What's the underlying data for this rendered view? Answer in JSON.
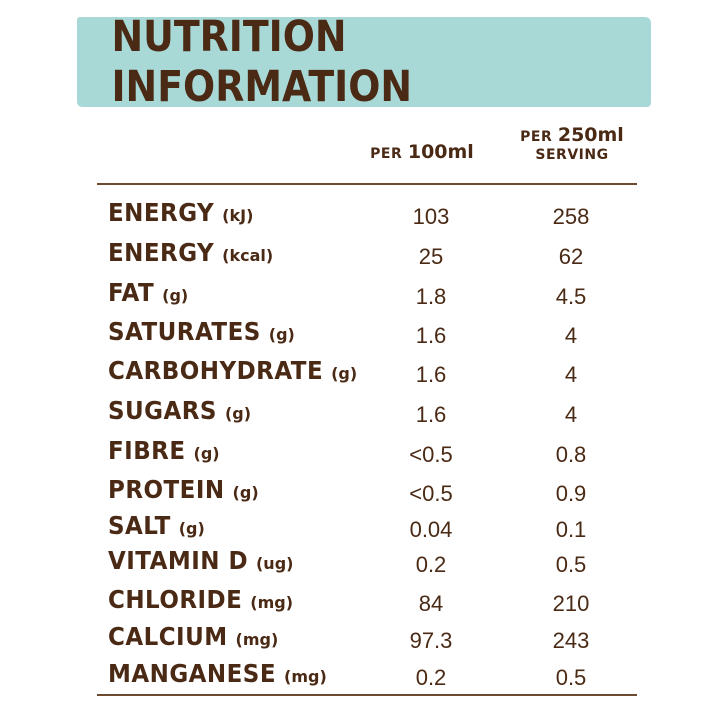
{
  "title": "NUTRITION INFORMATION",
  "columns": {
    "col1": {
      "prefix": "PER",
      "amount": "100ml"
    },
    "col2": {
      "prefix": "PER",
      "amount": "250ml",
      "suffix": "SERVING"
    }
  },
  "rows": [
    {
      "name": "ENERGY",
      "unit": "(kJ)",
      "per100": "103",
      "perServing": "258"
    },
    {
      "name": "ENERGY",
      "unit": "(kcal)",
      "per100": "25",
      "perServing": "62"
    },
    {
      "name": "FAT",
      "unit": "(g)",
      "per100": "1.8",
      "perServing": "4.5"
    },
    {
      "name": "SATURATES",
      "unit": "(g)",
      "per100": "1.6",
      "perServing": "4"
    },
    {
      "name": "CARBOHYDRATE",
      "unit": "(g)",
      "per100": "1.6",
      "perServing": "4"
    },
    {
      "name": "SUGARS",
      "unit": "(g)",
      "per100": "1.6",
      "perServing": "4"
    },
    {
      "name": "FIBRE",
      "unit": "(g)",
      "per100": "<0.5",
      "perServing": "0.8"
    },
    {
      "name": "PROTEIN",
      "unit": "(g)",
      "per100": "<0.5",
      "perServing": "0.9"
    },
    {
      "name": "SALT",
      "unit": "(g)",
      "per100": "0.04",
      "perServing": "0.1"
    },
    {
      "name": "VITAMIN D",
      "unit": "(ug)",
      "per100": "0.2",
      "perServing": "0.5"
    },
    {
      "name": "CHLORIDE",
      "unit": "(mg)",
      "per100": "84",
      "perServing": "210"
    },
    {
      "name": "CALCIUM",
      "unit": "(mg)",
      "per100": "97.3",
      "perServing": "243"
    },
    {
      "name": "MANGANESE",
      "unit": "(mg)",
      "per100": "0.2",
      "perServing": "0.5"
    }
  ],
  "colors": {
    "text": "#4a2a14",
    "band": "#a9d9d7",
    "rule": "#6b4a30"
  }
}
